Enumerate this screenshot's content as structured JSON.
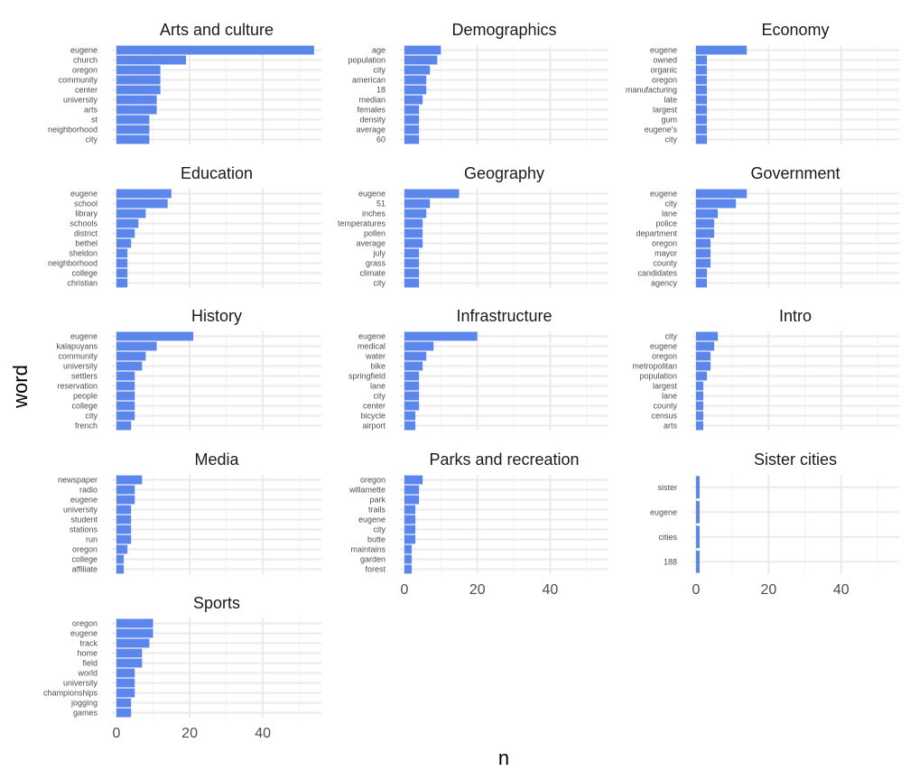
{
  "colors": {
    "bar": "#5b87ec",
    "grid_major": "#ebebeb",
    "grid_minor": "#f3f3f3",
    "text": "#1a1a1a",
    "tick_text": "#4d4d4d"
  },
  "chart_data": {
    "type": "bar",
    "orientation": "horizontal",
    "faceted": true,
    "xlabel": "n",
    "ylabel": "word",
    "xlim": [
      0,
      56
    ],
    "x_ticks": [
      0,
      20,
      40
    ],
    "grid": true,
    "facets": [
      {
        "title": "Arts and culture",
        "categories": [
          "eugene",
          "church",
          "oregon",
          "community",
          "center",
          "university",
          "arts",
          "st",
          "neighborhood",
          "city"
        ],
        "values": [
          54,
          19,
          12,
          12,
          12,
          11,
          11,
          9,
          9,
          9
        ]
      },
      {
        "title": "Demographics",
        "categories": [
          "age",
          "population",
          "city",
          "american",
          "18",
          "median",
          "females",
          "density",
          "average",
          "60"
        ],
        "values": [
          10,
          9,
          7,
          6,
          6,
          5,
          4,
          4,
          4,
          4
        ]
      },
      {
        "title": "Economy",
        "categories": [
          "eugene",
          "owned",
          "organic",
          "oregon",
          "manufacturing",
          "late",
          "largest",
          "gum",
          "eugene's",
          "city"
        ],
        "values": [
          14,
          3,
          3,
          3,
          3,
          3,
          3,
          3,
          3,
          3
        ]
      },
      {
        "title": "Education",
        "categories": [
          "eugene",
          "school",
          "library",
          "schools",
          "district",
          "bethel",
          "sheldon",
          "neighborhood",
          "college",
          "christian"
        ],
        "values": [
          15,
          14,
          8,
          6,
          5,
          4,
          3,
          3,
          3,
          3
        ]
      },
      {
        "title": "Geography",
        "categories": [
          "eugene",
          "51",
          "inches",
          "temperatures",
          "pollen",
          "average",
          "july",
          "grass",
          "climate",
          "city"
        ],
        "values": [
          15,
          7,
          6,
          5,
          5,
          5,
          4,
          4,
          4,
          4
        ]
      },
      {
        "title": "Government",
        "categories": [
          "eugene",
          "city",
          "lane",
          "police",
          "department",
          "oregon",
          "mayor",
          "county",
          "candidates",
          "agency"
        ],
        "values": [
          14,
          11,
          6,
          5,
          5,
          4,
          4,
          4,
          3,
          3
        ]
      },
      {
        "title": "History",
        "categories": [
          "eugene",
          "kalapuyans",
          "community",
          "university",
          "settlers",
          "reservation",
          "people",
          "college",
          "city",
          "french"
        ],
        "values": [
          21,
          11,
          8,
          7,
          5,
          5,
          5,
          5,
          5,
          4
        ]
      },
      {
        "title": "Infrastructure",
        "categories": [
          "eugene",
          "medical",
          "water",
          "bike",
          "springfield",
          "lane",
          "city",
          "center",
          "bicycle",
          "airport"
        ],
        "values": [
          20,
          8,
          6,
          5,
          4,
          4,
          4,
          4,
          3,
          3
        ]
      },
      {
        "title": "Intro",
        "categories": [
          "city",
          "eugene",
          "oregon",
          "metropolitan",
          "population",
          "largest",
          "lane",
          "county",
          "census",
          "arts"
        ],
        "values": [
          6,
          5,
          4,
          4,
          3,
          2,
          2,
          2,
          2,
          2
        ]
      },
      {
        "title": "Media",
        "categories": [
          "newspaper",
          "radio",
          "eugene",
          "university",
          "student",
          "stations",
          "run",
          "oregon",
          "college",
          "affiliate"
        ],
        "values": [
          7,
          5,
          5,
          4,
          4,
          4,
          4,
          3,
          2,
          2
        ]
      },
      {
        "title": "Parks and recreation",
        "categories": [
          "oregon",
          "willamette",
          "park",
          "trails",
          "eugene",
          "city",
          "butte",
          "maintains",
          "garden",
          "forest"
        ],
        "values": [
          5,
          4,
          4,
          3,
          3,
          3,
          3,
          2,
          2,
          2
        ]
      },
      {
        "title": "Sister cities",
        "categories": [
          "sister",
          "eugene",
          "cities",
          "188"
        ],
        "values": [
          1,
          1,
          1,
          1
        ]
      },
      {
        "title": "Sports",
        "categories": [
          "oregon",
          "eugene",
          "track",
          "home",
          "field",
          "world",
          "university",
          "championships",
          "jogging",
          "games"
        ],
        "values": [
          10,
          10,
          9,
          7,
          7,
          5,
          5,
          5,
          4,
          4
        ]
      }
    ]
  }
}
